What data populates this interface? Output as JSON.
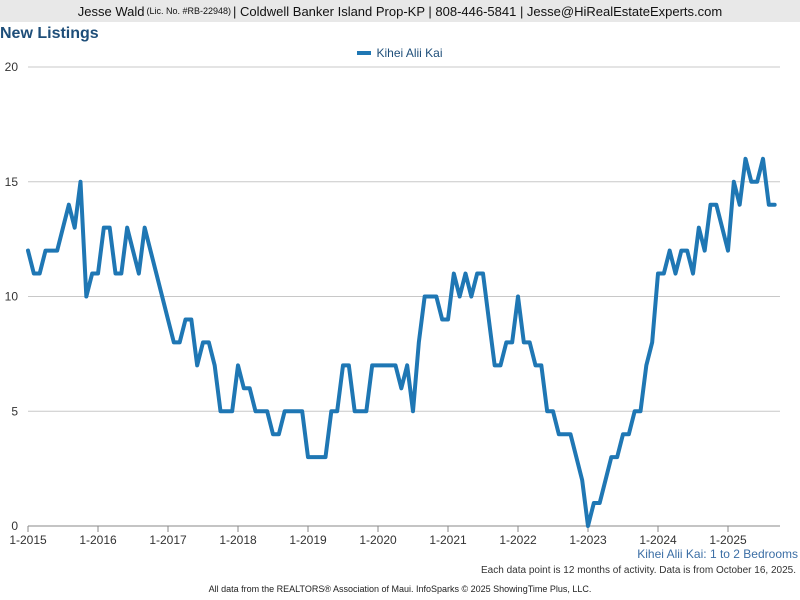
{
  "header": {
    "agent_name": "Jesse Wald",
    "license": "(Lic. No. #RB-22948)",
    "details": "| Coldwell Banker Island Prop-KP | 808-446-5841 | Jesse@HiRealEstateExperts.com"
  },
  "chart_subtitle": "Kihei Alii Kai: 1 to 2 Bedrooms",
  "note": "Each data point is 12 months of activity. Data is from October 16, 2025.",
  "footer": "All data from the REALTORS® Association of Maui. InfoSparks © 2025 ShowingTime Plus, LLC.",
  "colors": {
    "series": "#1f77b4",
    "title": "#1e4e79",
    "grid": "#c8c8c8"
  },
  "chart_data": {
    "type": "line",
    "title": "New Listings",
    "xlabel": "",
    "ylabel": "",
    "ylim": [
      0,
      20
    ],
    "yticks": [
      0,
      5,
      10,
      15,
      20
    ],
    "xticks": [
      "1-2015",
      "1-2016",
      "1-2017",
      "1-2018",
      "1-2019",
      "1-2020",
      "1-2021",
      "1-2022",
      "1-2023",
      "1-2024",
      "1-2025"
    ],
    "grid": true,
    "legend": "top-center",
    "series": [
      {
        "name": "Kihei Alii Kai",
        "x_start": "1-2015",
        "values": [
          12,
          11,
          11,
          12,
          12,
          12,
          13,
          14,
          13,
          15,
          10,
          11,
          11,
          13,
          13,
          11,
          11,
          13,
          12,
          11,
          13,
          12,
          11,
          10,
          9,
          8,
          8,
          9,
          9,
          7,
          8,
          8,
          7,
          5,
          5,
          5,
          7,
          6,
          6,
          5,
          5,
          5,
          4,
          4,
          5,
          5,
          5,
          5,
          3,
          3,
          3,
          3,
          5,
          5,
          7,
          7,
          5,
          5,
          5,
          7,
          7,
          7,
          7,
          7,
          6,
          7,
          5,
          8,
          10,
          10,
          10,
          9,
          9,
          11,
          10,
          11,
          10,
          11,
          11,
          9,
          7,
          7,
          8,
          8,
          10,
          8,
          8,
          7,
          7,
          5,
          5,
          4,
          4,
          4,
          3,
          2,
          0,
          1,
          1,
          2,
          3,
          3,
          4,
          4,
          5,
          5,
          7,
          8,
          11,
          11,
          12,
          11,
          12,
          12,
          11,
          13,
          12,
          14,
          14,
          13,
          12,
          15,
          14,
          16,
          15,
          15,
          16,
          14,
          14
        ]
      }
    ]
  }
}
